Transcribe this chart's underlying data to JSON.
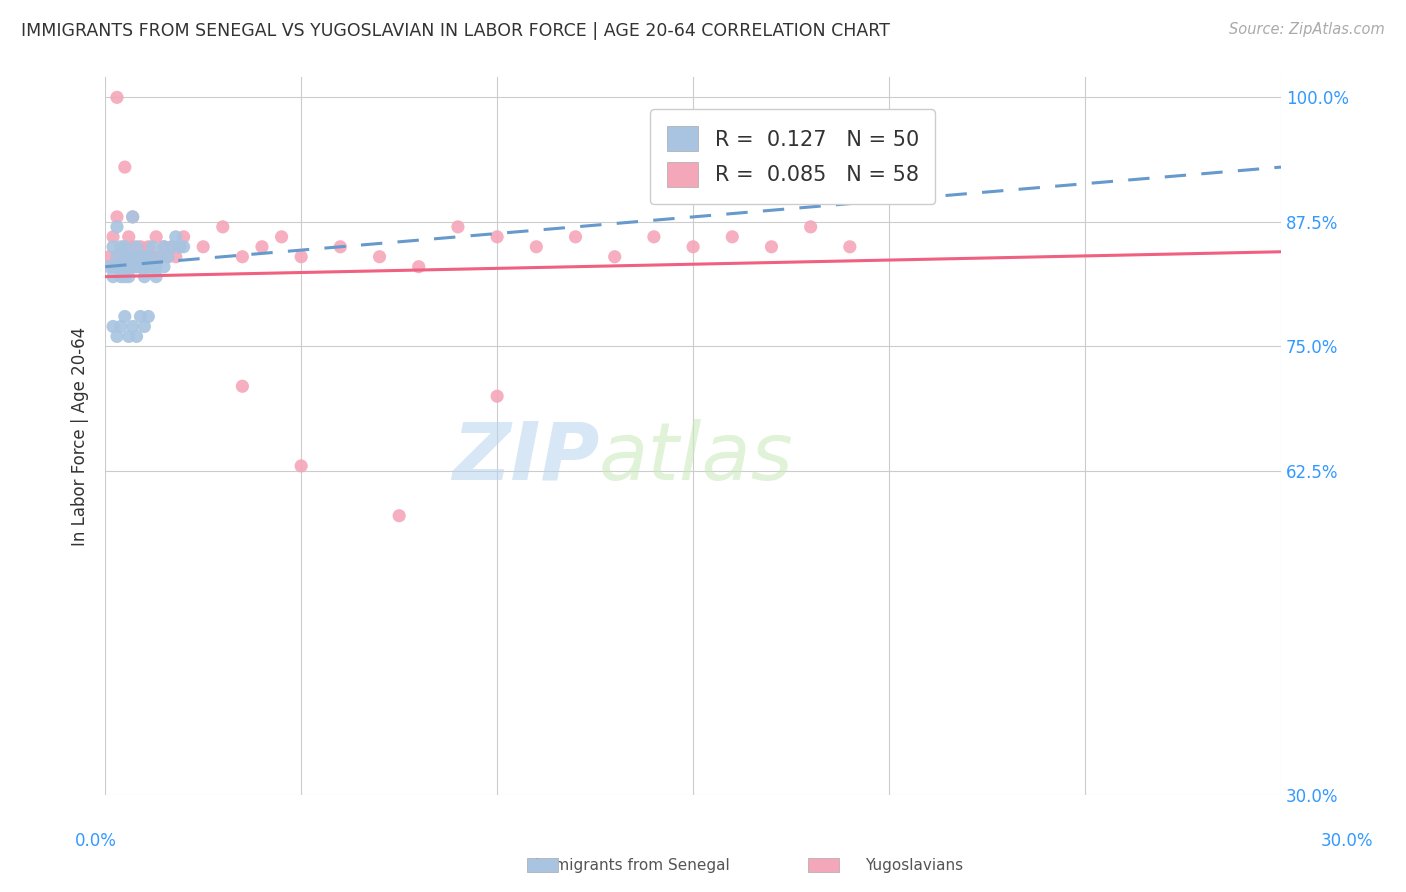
{
  "title": "IMMIGRANTS FROM SENEGAL VS YUGOSLAVIAN IN LABOR FORCE | AGE 20-64 CORRELATION CHART",
  "source": "Source: ZipAtlas.com",
  "ylabel": "In Labor Force | Age 20-64",
  "xlim": [
    0.0,
    0.3
  ],
  "ylim": [
    0.3,
    1.02
  ],
  "yticks": [
    1.0,
    0.875,
    0.75,
    0.625,
    0.3
  ],
  "ytick_labels": [
    "100.0%",
    "87.5%",
    "75.0%",
    "62.5%",
    "30.0%"
  ],
  "senegal_R": 0.127,
  "senegal_N": 50,
  "yugoslav_R": 0.085,
  "yugoslav_N": 58,
  "senegal_color": "#a8c4e0",
  "yugoslav_color": "#f4a7b9",
  "senegal_line_color": "#6699cc",
  "yugoslav_line_color": "#f06080",
  "title_color": "#333333",
  "axis_label_color": "#333333",
  "tick_label_color": "#3399ff",
  "grid_color": "#cccccc",
  "background_color": "#ffffff",
  "senegal_x": [
    0.001,
    0.002,
    0.002,
    0.003,
    0.003,
    0.003,
    0.004,
    0.004,
    0.004,
    0.005,
    0.005,
    0.005,
    0.006,
    0.006,
    0.006,
    0.007,
    0.007,
    0.007,
    0.008,
    0.008,
    0.008,
    0.009,
    0.009,
    0.01,
    0.01,
    0.01,
    0.011,
    0.011,
    0.012,
    0.012,
    0.013,
    0.013,
    0.014,
    0.015,
    0.015,
    0.016,
    0.017,
    0.018,
    0.019,
    0.02,
    0.002,
    0.003,
    0.004,
    0.005,
    0.006,
    0.007,
    0.008,
    0.009,
    0.01,
    0.011
  ],
  "senegal_y": [
    0.83,
    0.85,
    0.82,
    0.87,
    0.84,
    0.83,
    0.85,
    0.83,
    0.82,
    0.85,
    0.84,
    0.82,
    0.84,
    0.83,
    0.82,
    0.88,
    0.84,
    0.83,
    0.85,
    0.84,
    0.83,
    0.84,
    0.83,
    0.84,
    0.83,
    0.82,
    0.84,
    0.83,
    0.85,
    0.83,
    0.83,
    0.82,
    0.84,
    0.83,
    0.85,
    0.84,
    0.85,
    0.86,
    0.85,
    0.85,
    0.77,
    0.76,
    0.77,
    0.78,
    0.76,
    0.77,
    0.76,
    0.78,
    0.77,
    0.78
  ],
  "yugoslav_x": [
    0.001,
    0.002,
    0.002,
    0.003,
    0.003,
    0.004,
    0.004,
    0.005,
    0.005,
    0.006,
    0.006,
    0.007,
    0.007,
    0.008,
    0.008,
    0.009,
    0.009,
    0.01,
    0.01,
    0.011,
    0.011,
    0.012,
    0.013,
    0.014,
    0.015,
    0.016,
    0.017,
    0.018,
    0.019,
    0.02,
    0.025,
    0.03,
    0.035,
    0.04,
    0.045,
    0.05,
    0.06,
    0.07,
    0.08,
    0.09,
    0.1,
    0.11,
    0.12,
    0.13,
    0.14,
    0.15,
    0.16,
    0.17,
    0.18,
    0.19,
    0.003,
    0.005,
    0.007,
    0.009,
    0.035,
    0.05,
    0.075,
    0.1
  ],
  "yugoslav_y": [
    0.84,
    0.86,
    0.83,
    0.88,
    0.84,
    0.84,
    0.83,
    0.85,
    0.84,
    0.86,
    0.83,
    0.85,
    0.84,
    0.84,
    0.83,
    0.85,
    0.84,
    0.84,
    0.83,
    0.85,
    0.84,
    0.84,
    0.86,
    0.84,
    0.85,
    0.84,
    0.85,
    0.84,
    0.85,
    0.86,
    0.85,
    0.87,
    0.84,
    0.85,
    0.86,
    0.84,
    0.85,
    0.84,
    0.83,
    0.87,
    0.86,
    0.85,
    0.86,
    0.84,
    0.86,
    0.85,
    0.86,
    0.85,
    0.87,
    0.85,
    1.0,
    0.93,
    0.88,
    0.83,
    0.71,
    0.63,
    0.58,
    0.7
  ]
}
